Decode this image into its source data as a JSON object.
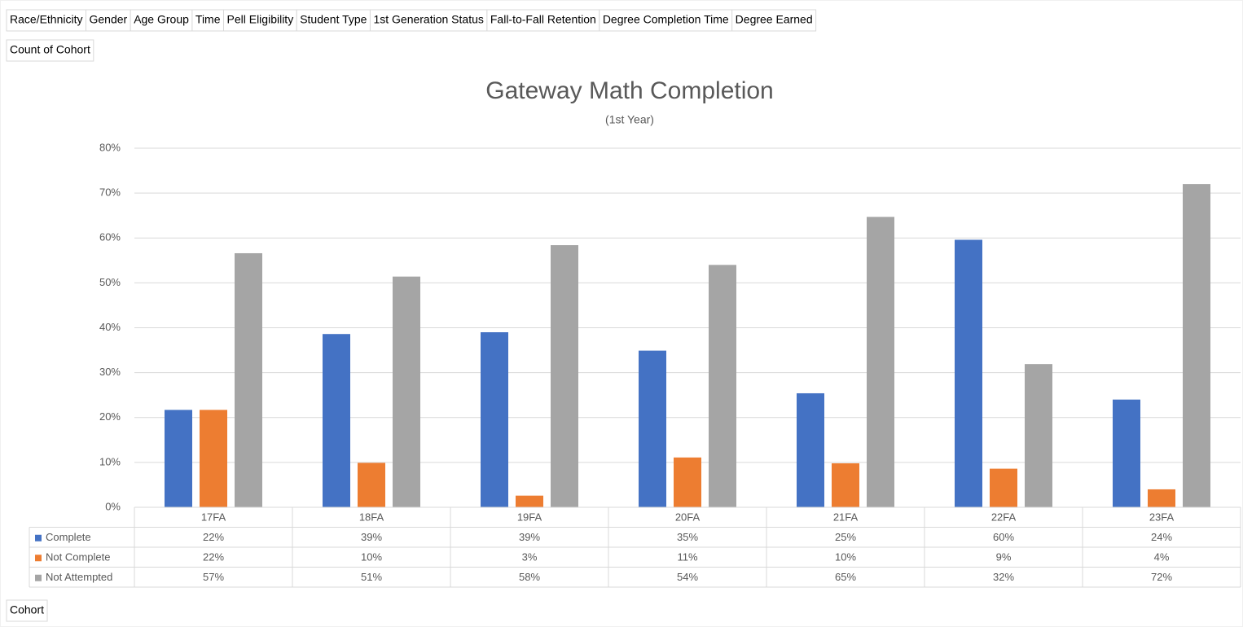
{
  "filter_buttons": [
    "Race/Ethnicity",
    "Gender",
    "Age Group",
    "Time",
    "Pell Eligibility",
    "Student Type",
    "1st Generation Status",
    "Fall-to-Fall Retention",
    "Degree Completion Time",
    "Degree Earned"
  ],
  "value_field_button": "Count of Cohort",
  "axis_field_button": "Cohort",
  "chart_data": {
    "type": "bar",
    "title": "Gateway Math Completion",
    "subtitle": "(1st Year)",
    "categories": [
      "17FA",
      "18FA",
      "19FA",
      "20FA",
      "21FA",
      "22FA",
      "23FA"
    ],
    "series": [
      {
        "name": "Complete",
        "color": "#4472c4",
        "values": [
          21.7,
          38.6,
          39,
          34.9,
          25.4,
          59.6,
          24
        ],
        "value_labels": [
          "22%",
          "39%",
          "39%",
          "35%",
          "25%",
          "60%",
          "24%"
        ]
      },
      {
        "name": "Not Complete",
        "color": "#ed7d31",
        "values": [
          21.7,
          9.9,
          2.6,
          11.1,
          9.8,
          8.6,
          4.0
        ],
        "value_labels": [
          "22%",
          "10%",
          "3%",
          "11%",
          "10%",
          "9%",
          "4%"
        ]
      },
      {
        "name": "Not Attempted",
        "color": "#a5a5a5",
        "values": [
          56.6,
          51.4,
          58.4,
          54,
          64.7,
          31.9,
          72
        ],
        "value_labels": [
          "57%",
          "51%",
          "58%",
          "54%",
          "65%",
          "32%",
          "72%"
        ]
      }
    ],
    "ylim": [
      0,
      80
    ],
    "yticks": [
      {
        "value": 0,
        "label": "0%"
      },
      {
        "value": 10,
        "label": "10%"
      },
      {
        "value": 20,
        "label": "20%"
      },
      {
        "value": 30,
        "label": "30%"
      },
      {
        "value": 40,
        "label": "40%"
      },
      {
        "value": 50,
        "label": "50%"
      },
      {
        "value": 60,
        "label": "60%"
      },
      {
        "value": 70,
        "label": "70%"
      },
      {
        "value": 80,
        "label": "80%"
      }
    ],
    "grid": true
  }
}
